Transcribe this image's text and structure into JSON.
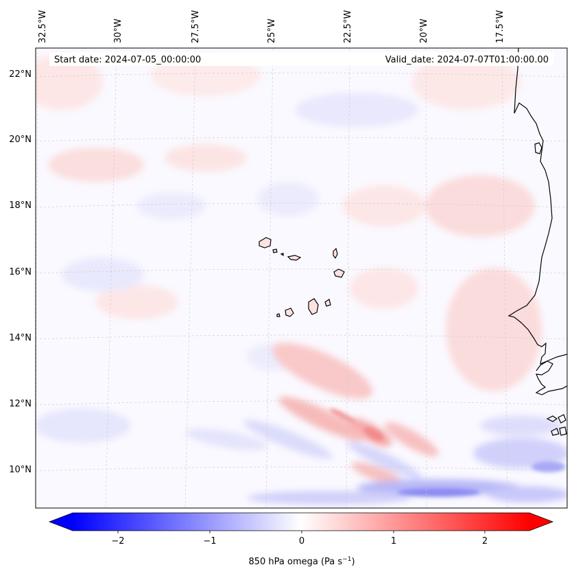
{
  "map": {
    "start_text": "Start date: 2024-07-05_00:00:00",
    "valid_text": "Valid_date: 2024-07-07T01:00:00.00",
    "lon_labels": [
      "32.5°W",
      "30°W",
      "27.5°W",
      "25°W",
      "22.5°W",
      "20°W",
      "17.5°W"
    ],
    "lat_labels": [
      "22°N",
      "20°N",
      "18°N",
      "16°N",
      "14°N",
      "12°N",
      "10°N"
    ],
    "projection_extent": {
      "lon": [
        -32.5,
        -16.0
      ],
      "lat": [
        9.0,
        22.5
      ]
    },
    "features": [
      "Cape Verde Islands",
      "West African coastline (Senegal, Gambia, Guinea-Bissau)"
    ]
  },
  "colorbar": {
    "label_prefix": "850 hPa omega (Pa s",
    "label_exp": "−1",
    "label_suffix": ")",
    "ticks": [
      "−2",
      "−1",
      "0",
      "1",
      "2"
    ],
    "tick_values": [
      -2,
      -1,
      0,
      1,
      2
    ],
    "range": [
      -2.5,
      2.5
    ],
    "colormap": "bwr",
    "extend": "both",
    "low_color": "#0000ff",
    "mid_color": "#ffffff",
    "high_color": "#ff0000"
  }
}
